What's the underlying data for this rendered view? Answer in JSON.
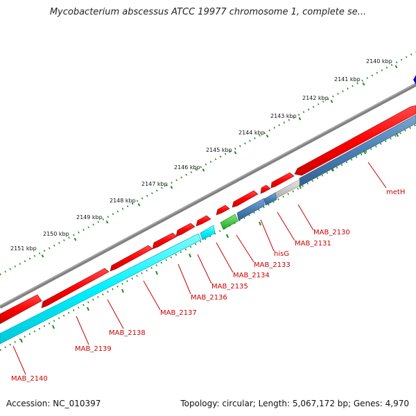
{
  "title": "Mycobacterium abscessus ATCC 19977 chromosome 1, complete se...",
  "footer": {
    "accession": "Accession: NC_010397",
    "summary": "Topology: circular; Length: 5,067,172 bp; Genes: 4,970"
  },
  "colors": {
    "backbone": "#808080",
    "forward_gene": "#ff0000",
    "reverse_gene_a": "#00ffff",
    "reverse_gene_b": "#4a7fb5",
    "hisG_gene": "#2ecc2e",
    "pseudo_gene": "#cccccc",
    "ticks": "#1f8a1f",
    "labels": "#cc0000"
  },
  "ruler": {
    "unit": "kbp",
    "labels": [
      "2140 kbp",
      "2141 kbp",
      "2142 kbp",
      "2143 kbp",
      "2144 kbp",
      "2145 kbp",
      "2146 kbp",
      "2147 kbp",
      "2148 kbp",
      "2149 kbp",
      "2150 kbp",
      "2151 kbp"
    ]
  },
  "genes": [
    "metH",
    "MAB_2130",
    "MAB_2131",
    "hisG",
    "MAB_2133",
    "MAB_2134",
    "MAB_2135",
    "MAB_2136",
    "MAB_2137",
    "MAB_2138",
    "MAB_2139",
    "MAB_2140"
  ]
}
